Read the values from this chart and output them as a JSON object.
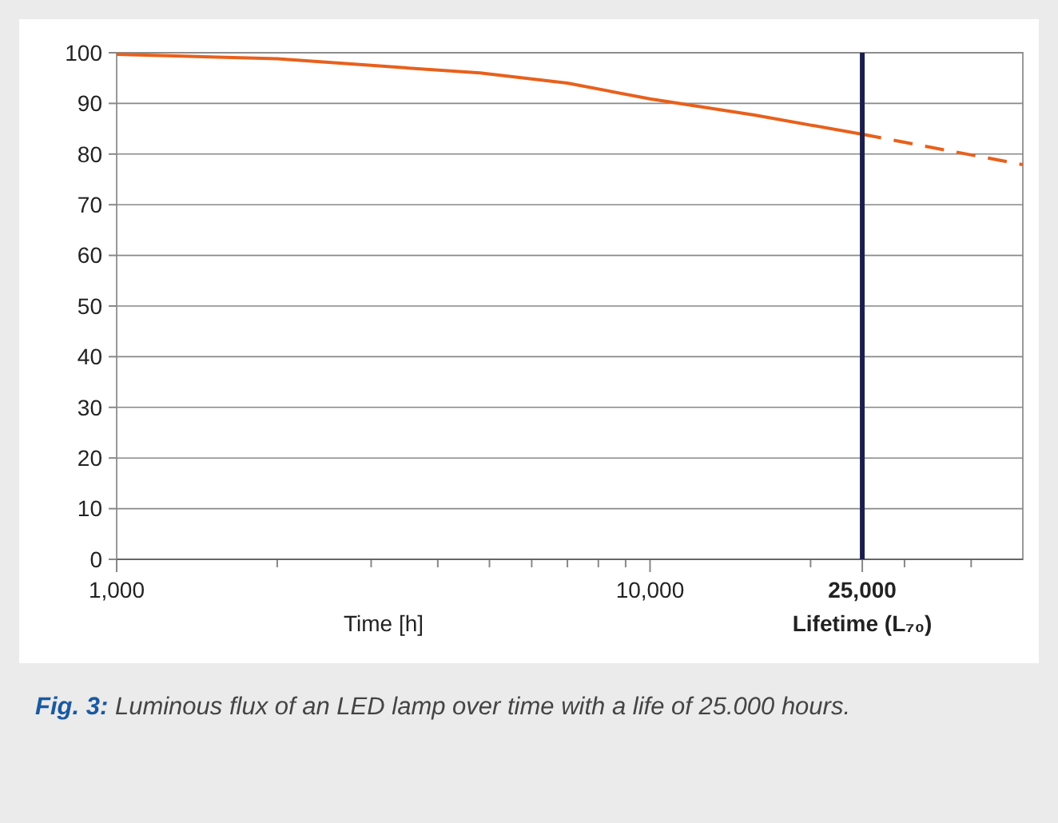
{
  "chart_data": {
    "type": "line",
    "xlabel": "Time [h]",
    "log": "x",
    "xlim": [
      1000,
      50000
    ],
    "ylim": [
      0,
      100
    ],
    "xticks": [
      {
        "value": 1000,
        "label": "1,000"
      },
      {
        "value": 2000,
        "label": null
      },
      {
        "value": 3000,
        "label": null
      },
      {
        "value": 4000,
        "label": null
      },
      {
        "value": 5000,
        "label": null
      },
      {
        "value": 6000,
        "label": null
      },
      {
        "value": 7000,
        "label": null
      },
      {
        "value": 8000,
        "label": null
      },
      {
        "value": 9000,
        "label": null
      },
      {
        "value": 10000,
        "label": "10,000"
      },
      {
        "value": 20000,
        "label": null
      },
      {
        "value": 25000,
        "label": "25,000"
      },
      {
        "value": 30000,
        "label": null
      },
      {
        "value": 40000,
        "label": null
      }
    ],
    "yticks": [
      0,
      10,
      20,
      30,
      40,
      50,
      60,
      70,
      80,
      90,
      100
    ],
    "grid": "y",
    "series": [
      {
        "color": "#e8601c",
        "x": [
          1000,
          2000,
          3000,
          4800,
          7000,
          10000,
          15700,
          25000
        ],
        "values": [
          99.7,
          98.8,
          97.5,
          96,
          94,
          90.9,
          87.7,
          83.9
        ]
      },
      {
        "color": "#e8601c",
        "line_style": "dashed",
        "x": [
          25000,
          50000
        ],
        "values": [
          83.9,
          77.9
        ]
      }
    ],
    "ref_lines": [
      {
        "axis": "x",
        "value": 25000,
        "label": "Lifetime (L₇₀)",
        "color": "#1b1f4e"
      }
    ],
    "annotations": [
      "Fig. 3:",
      "Luminous flux of an LED lamp over time with a life of 25.000 hours."
    ]
  }
}
